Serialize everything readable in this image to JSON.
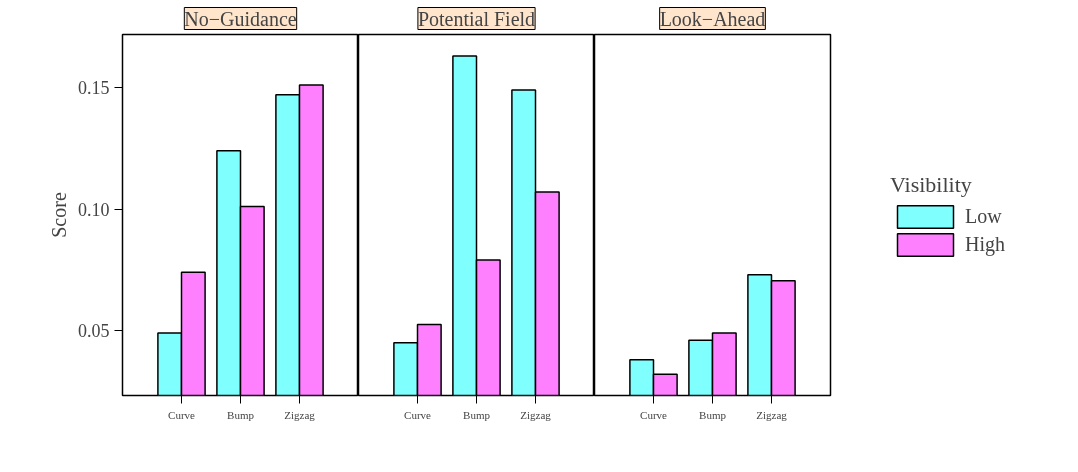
{
  "chart_data": [
    {
      "type": "bar",
      "title": "No−Guidance",
      "ylabel": "Score",
      "categories": [
        "Curve",
        "Bump",
        "Zigzag"
      ],
      "ylim": [
        0.0233,
        0.1718
      ],
      "yticks": [
        {
          "value": 0.05,
          "label": "0.05"
        },
        {
          "value": 0.1,
          "label": "0.10"
        },
        {
          "value": 0.15,
          "label": "0.15"
        }
      ],
      "series": [
        {
          "color": "#80ffff",
          "values": [
            0.049,
            0.124,
            0.147
          ]
        },
        {
          "color": "#ff80ff",
          "values": [
            0.074,
            0.101,
            0.151
          ]
        }
      ]
    },
    {
      "type": "bar",
      "title": "Potential Field",
      "categories": [
        "Curve",
        "Bump",
        "Zigzag"
      ],
      "ylim": [
        0.0233,
        0.1718
      ],
      "tick_labels": "x",
      "series": [
        {
          "color": "#80ffff",
          "values": [
            0.045,
            0.163,
            0.149
          ]
        },
        {
          "color": "#ff80ff",
          "values": [
            0.0525,
            0.079,
            0.107
          ]
        }
      ]
    },
    {
      "type": "bar",
      "title": "Look−Ahead",
      "categories": [
        "Curve",
        "Bump",
        "Zigzag"
      ],
      "ylim": [
        0.0233,
        0.1718
      ],
      "tick_labels": "x",
      "legend": "right",
      "legend_title": "Visibility",
      "series": [
        {
          "name": "Low",
          "color": "#80ffff",
          "values": [
            0.038,
            0.046,
            0.073
          ]
        },
        {
          "name": "High",
          "color": "#ff80ff",
          "values": [
            0.032,
            0.049,
            0.0705
          ]
        }
      ]
    }
  ]
}
